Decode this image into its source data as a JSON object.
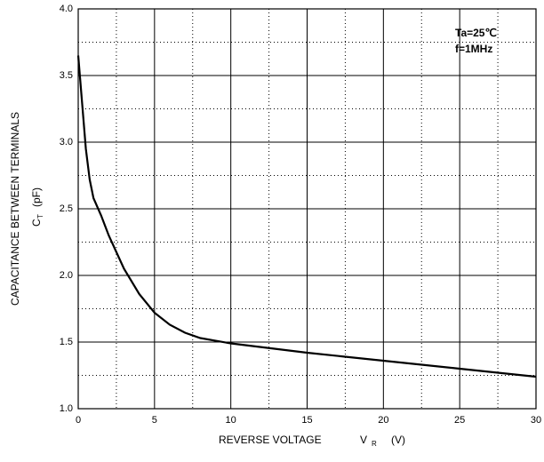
{
  "chart_data": {
    "type": "line",
    "annotations": [
      "Ta=25℃",
      "f=1MHz"
    ],
    "y_label": "CAPACITANCE BETWEEN TERMINALS",
    "y_unit_label": {
      "symbol": "C",
      "subscript": "T",
      "unit": "(pF)"
    },
    "x_label": {
      "text": "REVERSE VOLTAGE",
      "symbol": "V",
      "subscript": "R",
      "unit": "(V)"
    },
    "x": [
      0,
      0.25,
      0.5,
      0.75,
      1,
      1.5,
      2,
      3,
      4,
      5,
      6,
      7,
      8,
      10,
      15,
      20,
      25,
      30
    ],
    "series": [
      {
        "color": "#000000",
        "values": [
          3.65,
          3.3,
          2.95,
          2.72,
          2.58,
          2.45,
          2.3,
          2.05,
          1.86,
          1.72,
          1.63,
          1.57,
          1.53,
          1.49,
          1.42,
          1.36,
          1.3,
          1.24
        ]
      }
    ],
    "xlim": [
      0,
      30
    ],
    "xticks": [
      0,
      5,
      10,
      15,
      20,
      25,
      30
    ],
    "xminorticks": [
      2.5,
      7.5,
      12.5,
      17.5,
      22.5,
      27.5
    ],
    "ylim": [
      1,
      4
    ],
    "yticks": [
      {
        "value": 1,
        "label": "1.0"
      },
      {
        "value": 1.5,
        "label": "1.5"
      },
      {
        "value": 2,
        "label": "2.0"
      },
      {
        "value": 2.5,
        "label": "2.5"
      },
      {
        "value": 3,
        "label": "3.0"
      },
      {
        "value": 3.5,
        "label": "3.5"
      },
      {
        "value": 4,
        "label": "4.0"
      }
    ],
    "yminorticks": [
      1.25,
      1.75,
      2.25,
      2.75,
      3.25,
      3.75
    ],
    "grid": true
  }
}
